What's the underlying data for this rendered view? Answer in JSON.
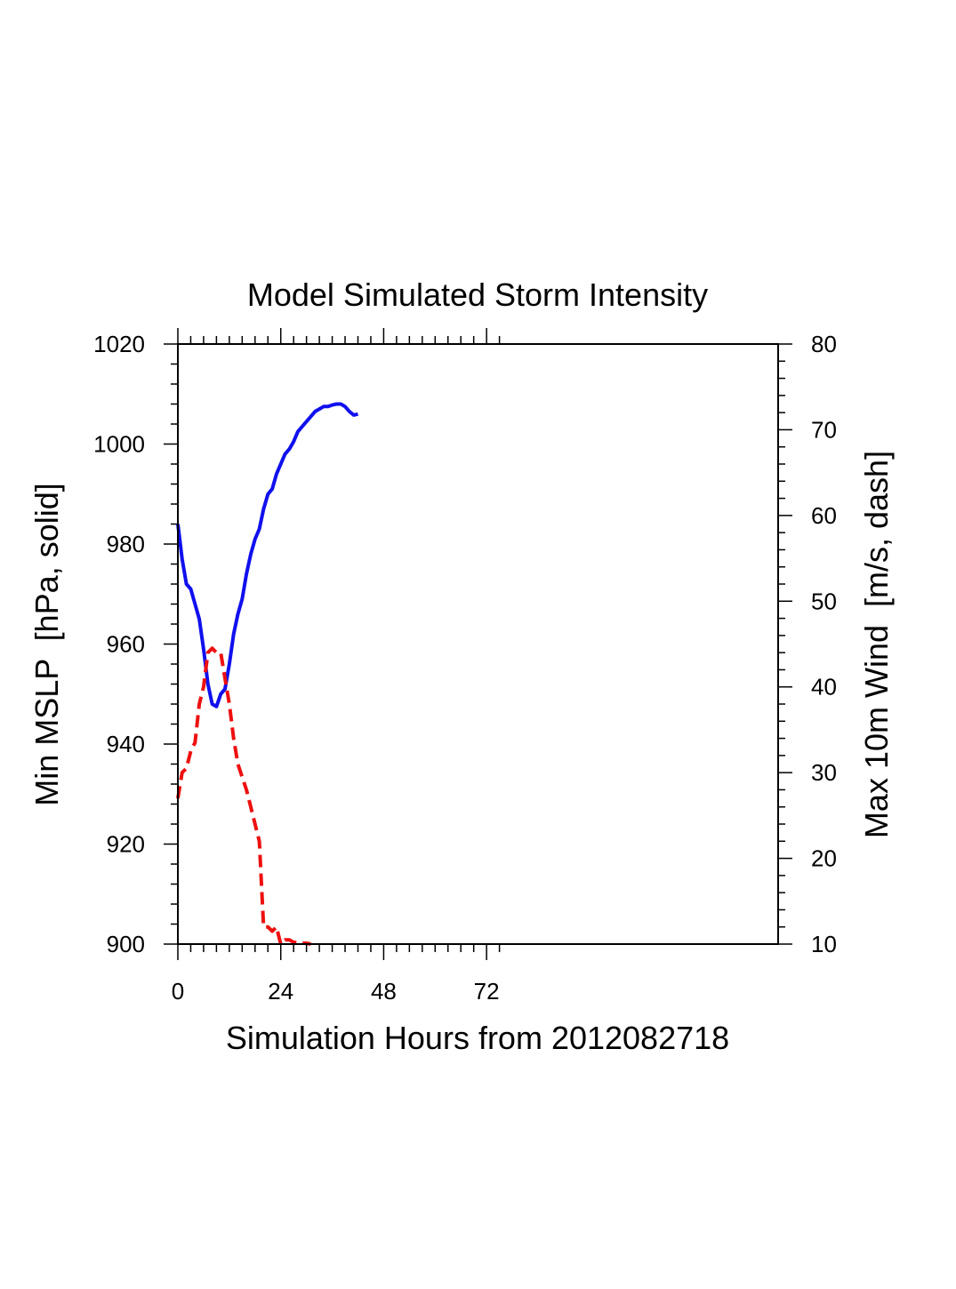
{
  "chart_data": {
    "type": "line",
    "title": "Model Simulated Storm Intensity",
    "xlabel": "Simulation Hours from 2012082718",
    "ylabel_left": "Min MSLP  [hPa, solid]",
    "ylabel_right": "Max 10m Wind  [m/s, dash]",
    "xlim": [
      0,
      140
    ],
    "ylim_left": [
      900,
      1020
    ],
    "ylim_right": [
      10,
      80
    ],
    "x_ticks": [
      0,
      24,
      48,
      72
    ],
    "y_ticks_left": [
      900,
      920,
      940,
      960,
      980,
      1000,
      1020
    ],
    "y_ticks_right": [
      10,
      20,
      30,
      40,
      50,
      60,
      70,
      80
    ],
    "colors": {
      "mslp": "#1010ee",
      "wind": "#ee1010",
      "frame": "#000000"
    },
    "series": [
      {
        "name": "Min MSLP",
        "axis": "left",
        "style": "solid",
        "x": [
          0,
          1,
          2,
          3,
          4,
          5,
          6,
          7,
          8,
          9,
          10,
          11,
          12,
          13,
          14,
          15,
          16,
          17,
          18,
          19,
          20,
          21,
          22,
          23,
          24,
          25,
          26,
          27,
          28,
          29,
          30,
          31,
          32,
          33,
          34,
          35,
          36,
          37,
          38,
          39,
          40,
          41,
          42
        ],
        "values": [
          984,
          977,
          972,
          971,
          968,
          965,
          959,
          952,
          948,
          947.5,
          950,
          951,
          956,
          962,
          966,
          969,
          974,
          978,
          981,
          983,
          987,
          990,
          991,
          994,
          996,
          998,
          999,
          1000.5,
          1002.5,
          1003.5,
          1004.5,
          1005.5,
          1006.5,
          1007,
          1007.5,
          1007.5,
          1007.8,
          1008,
          1008,
          1007.5,
          1006.5,
          1005.8,
          1006
        ]
      },
      {
        "name": "Max 10m Wind",
        "axis": "right",
        "style": "dashed",
        "x": [
          0,
          1,
          2,
          3,
          4,
          5,
          6,
          7,
          8,
          9,
          10,
          11,
          12,
          13,
          14,
          15,
          16,
          17,
          18,
          19,
          20,
          21,
          22,
          23,
          24,
          25,
          26,
          27,
          28,
          29,
          30,
          31
        ],
        "values": [
          27,
          30,
          30.5,
          32.5,
          33.5,
          38,
          40,
          44,
          44.5,
          44,
          44,
          41,
          38,
          34,
          31,
          29.5,
          28,
          26,
          24,
          22,
          12,
          12,
          11.5,
          12,
          10,
          10.5,
          10.5,
          10.2,
          10.2,
          10.1,
          10.1,
          10
        ]
      }
    ]
  }
}
